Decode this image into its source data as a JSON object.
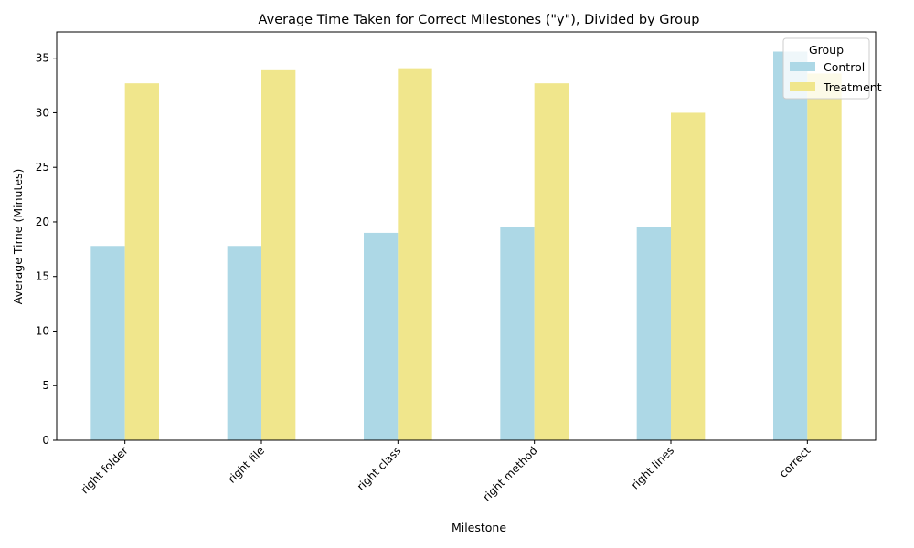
{
  "chart_data": {
    "type": "bar",
    "title": "Average Time Taken for Correct Milestones (\"y\"), Divided by Group",
    "xlabel": "Milestone",
    "ylabel": "Average Time (Minutes)",
    "categories": [
      "right folder",
      "right file",
      "right class",
      "right method",
      "right lines",
      "correct"
    ],
    "series": [
      {
        "name": "Control",
        "color": "#add8e6",
        "values": [
          17.8,
          17.8,
          19.0,
          19.5,
          19.5,
          35.6
        ]
      },
      {
        "name": "Treatment",
        "color": "#f0e68c",
        "values": [
          32.7,
          33.9,
          34.0,
          32.7,
          30.0,
          33.6
        ]
      }
    ],
    "ylim": [
      0,
      37.4
    ],
    "yticks": [
      0,
      5,
      10,
      15,
      20,
      25,
      30,
      35
    ],
    "grid": false,
    "legend": {
      "title": "Group",
      "position": "top-right"
    }
  }
}
